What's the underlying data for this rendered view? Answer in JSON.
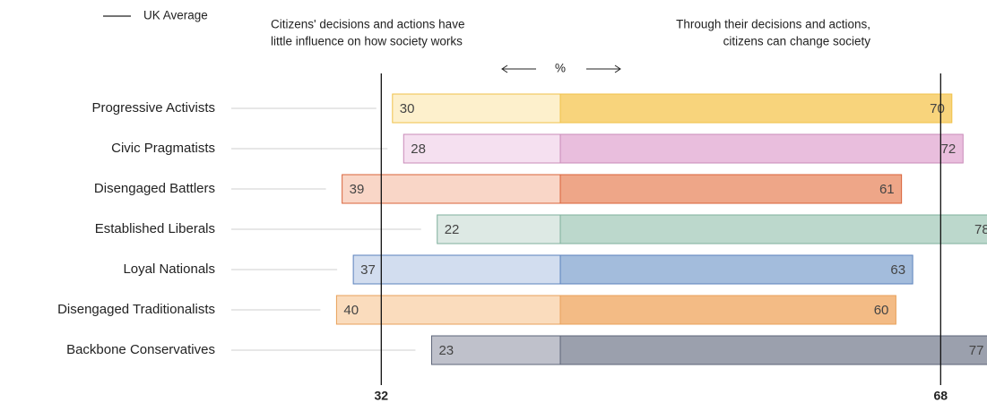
{
  "chart_data": {
    "type": "diverging-bar",
    "legend": "UK Average",
    "unit": "%",
    "categories": [
      "Progressive Activists",
      "Civic Pragmatists",
      "Disengaged Battlers",
      "Established Liberals",
      "Loyal Nationals",
      "Disengaged Traditionalists",
      "Backbone Conservatives"
    ],
    "series": [
      {
        "name_lines": [
          "Citizens' decisions and actions have",
          "little influence on how society works"
        ],
        "values": [
          30,
          28,
          39,
          22,
          37,
          40,
          23
        ],
        "colors": [
          "#fdf0cc",
          "#f5e0f0",
          "#f9d6c7",
          "#dde9e4",
          "#d2ddef",
          "#fadcbd",
          "#bfc1cb"
        ]
      },
      {
        "name_lines": [
          "Through their decisions and actions,",
          "citizens can change society"
        ],
        "values": [
          70,
          72,
          61,
          78,
          63,
          60,
          77
        ],
        "colors": [
          "#f8d47c",
          "#e9bedd",
          "#eea688",
          "#bcd8cc",
          "#a3bcdc",
          "#f3bb85",
          "#9ba0ad"
        ]
      }
    ],
    "border_colors": [
      "#f0c24a",
      "#c98bb9",
      "#d9633a",
      "#7fb09c",
      "#5b82bd",
      "#e8a05a",
      "#5e6578"
    ],
    "uk_average": {
      "left": 32,
      "right": 68
    }
  }
}
